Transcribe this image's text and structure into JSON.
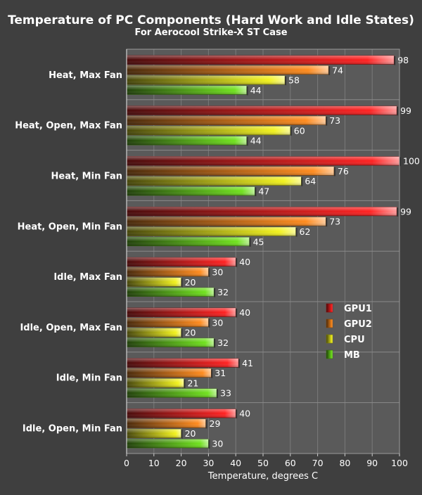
{
  "chart_data": {
    "type": "bar",
    "orientation": "horizontal",
    "title": "Temperature of PC Components (Hard Work and Idle States)",
    "subtitle": "For Aerocool Strike-X ST Case",
    "xlabel": "Temperature, degrees C",
    "ylabel": "",
    "xlim": [
      0,
      100
    ],
    "x_ticks": [
      "0",
      "10",
      "20",
      "30",
      "40",
      "50",
      "60",
      "70",
      "80",
      "90",
      "100"
    ],
    "grid": true,
    "legend_position": "right",
    "categories": [
      "Heat, Max Fan",
      "Heat, Open, Max Fan",
      "Heat, Min Fan",
      "Heat, Open, Min Fan",
      "Idle, Max Fan",
      "Idle, Open, Max Fan",
      "Idle, Min Fan",
      "Idle, Open, Min Fan"
    ],
    "series": [
      {
        "name": "GPU1",
        "color": "#ff2020",
        "values": [
          98,
          99,
          100,
          99,
          40,
          40,
          41,
          40
        ]
      },
      {
        "name": "GPU2",
        "color": "#ff8a1c",
        "values": [
          74,
          73,
          76,
          73,
          30,
          30,
          31,
          29
        ]
      },
      {
        "name": "CPU",
        "color": "#f2f21c",
        "values": [
          58,
          60,
          64,
          62,
          20,
          20,
          21,
          20
        ]
      },
      {
        "name": "MB",
        "color": "#6fe21c",
        "values": [
          44,
          44,
          47,
          45,
          32,
          32,
          33,
          30
        ]
      }
    ]
  }
}
